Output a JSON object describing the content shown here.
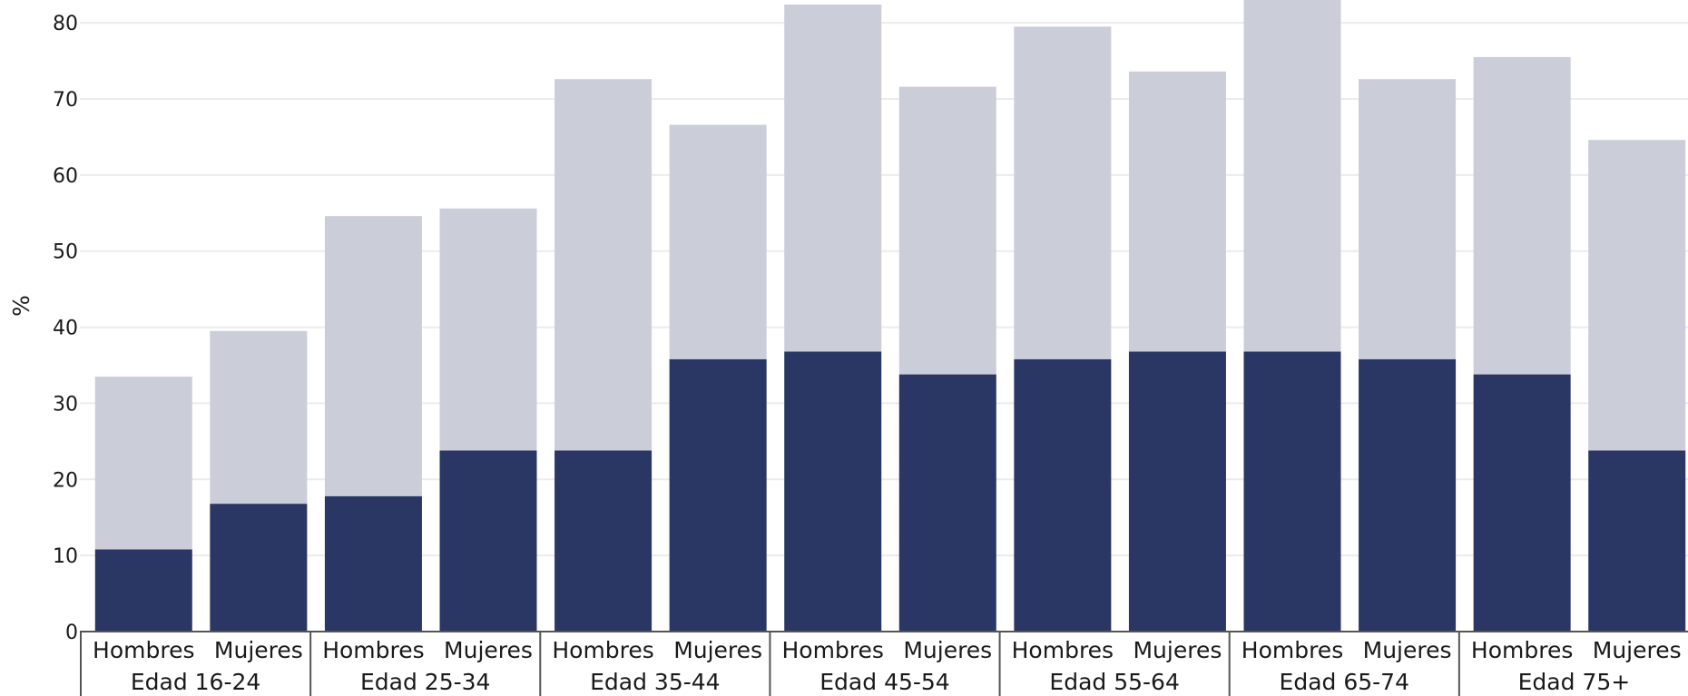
{
  "chart_data": {
    "type": "bar",
    "stacked": true,
    "ylabel": "%",
    "ylim": [
      0,
      83
    ],
    "yticks": [
      0,
      10,
      20,
      30,
      40,
      50,
      60,
      70,
      80
    ],
    "grid": true,
    "groups": [
      "Edad 16-24",
      "Edad 25-34",
      "Edad 35-44",
      "Edad 45-54",
      "Edad 55-64",
      "Edad 65-74",
      "Edad 75+"
    ],
    "subcategories": [
      "Hombres",
      "Mujeres"
    ],
    "series": [
      {
        "color": "#2a3664",
        "values": [
          10.8,
          16.8,
          17.8,
          23.8,
          23.8,
          35.8,
          36.8,
          33.8,
          35.8,
          36.8,
          36.8,
          35.8,
          33.8,
          23.8
        ]
      },
      {
        "color": "#cbcdd9",
        "values": [
          22.7,
          22.7,
          36.8,
          31.8,
          48.8,
          30.8,
          45.6,
          37.8,
          43.7,
          36.8,
          46.7,
          36.8,
          41.7,
          40.8
        ]
      }
    ]
  }
}
